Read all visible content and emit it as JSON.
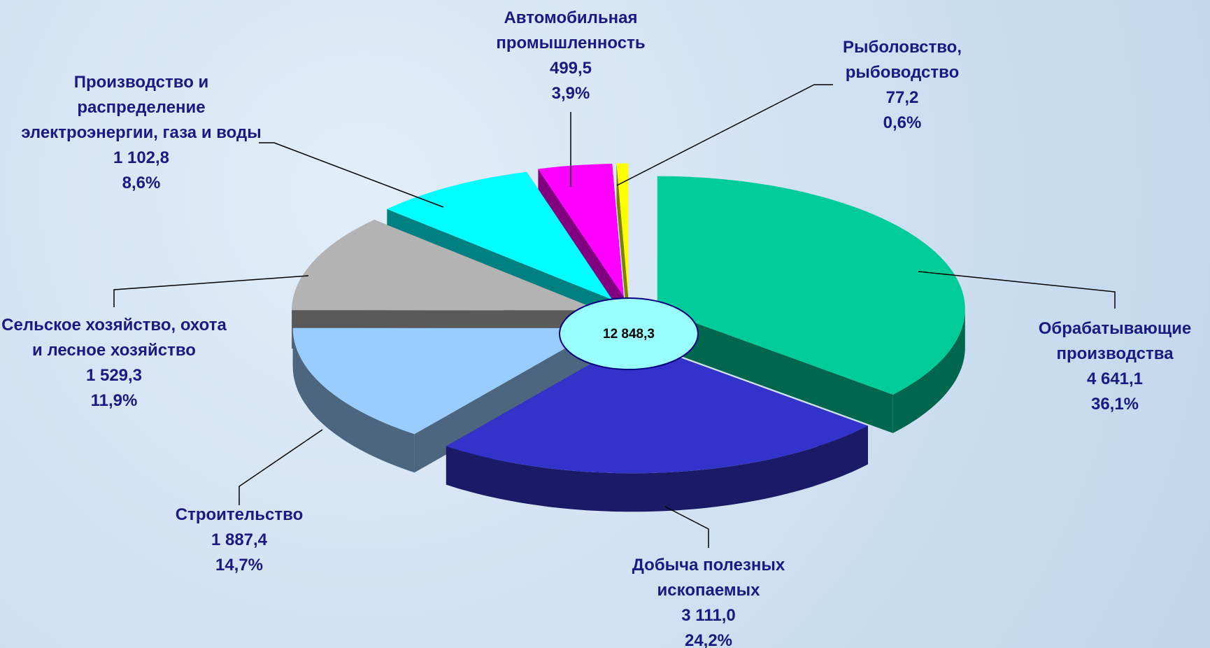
{
  "chart_data": {
    "type": "pie3d",
    "categories": [
      "Обрабатывающие производства",
      "Добыча полезных ископаемых",
      "Строительство",
      "Сельское хозяйство, охота и лесное хозяйство",
      "Производство и распределение электроэнергии, газа и воды",
      "Автомобильная промышленность",
      "Рыболовство, рыбоводство"
    ],
    "values": [
      4641.1,
      3111.0,
      1887.4,
      1529.3,
      1102.8,
      499.5,
      77.2
    ],
    "value_labels": [
      "4 641,1",
      "3 111,0",
      "1 887,4",
      "1 529,3",
      "1 102,8",
      "499,5",
      "77,2"
    ],
    "percentages": [
      36.1,
      24.2,
      14.7,
      11.9,
      8.6,
      3.9,
      0.6
    ],
    "percentage_labels": [
      "36,1%",
      "24,2%",
      "14,7%",
      "11,9%",
      "8,6%",
      "3,9%",
      "0,6%"
    ],
    "colors": [
      "#00cc99",
      "#3333cc",
      "#99ccff",
      "#b3b3b3",
      "#00ffff",
      "#ff00ff",
      "#ffff00"
    ],
    "total": 12848.3,
    "total_label": "12 848,3"
  }
}
